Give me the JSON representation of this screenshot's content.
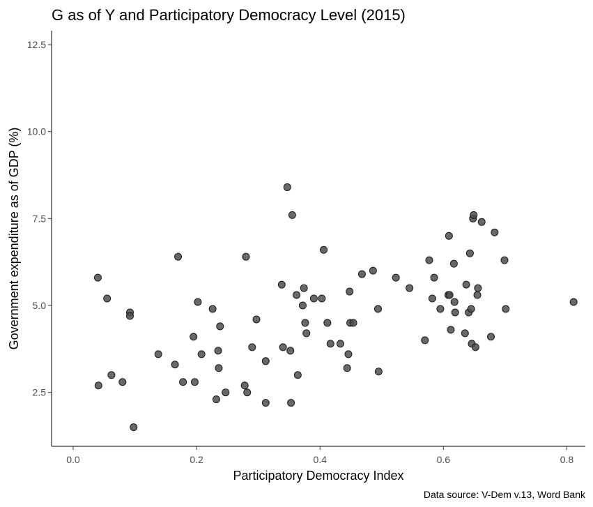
{
  "chart_data": {
    "type": "scatter",
    "title": "G as of Y and Participatory Democracy Level (2015)",
    "xlabel": "Participatory Democracy Index",
    "ylabel": "Government expenditure as of GDP (%)",
    "caption": "Data source: V-Dem v.13, Word Bank",
    "xlim": [
      -0.035,
      0.83
    ],
    "ylim": [
      0.95,
      12.9
    ],
    "x_ticks": [
      0.0,
      0.2,
      0.4,
      0.6,
      0.8
    ],
    "x_tick_labels": [
      "0.0",
      "0.2",
      "0.4",
      "0.6",
      "0.8"
    ],
    "y_ticks": [
      2.5,
      5.0,
      7.5,
      10.0,
      12.5
    ],
    "y_tick_labels": [
      "2.5",
      "5.0",
      "7.5",
      "10.0",
      "12.5"
    ],
    "grid": false,
    "point_color": "#4d4d4d",
    "points": [
      {
        "x": 0.04,
        "y": 5.8
      },
      {
        "x": 0.041,
        "y": 2.7
      },
      {
        "x": 0.055,
        "y": 5.2
      },
      {
        "x": 0.062,
        "y": 3.0
      },
      {
        "x": 0.08,
        "y": 2.8
      },
      {
        "x": 0.092,
        "y": 4.8
      },
      {
        "x": 0.092,
        "y": 4.7
      },
      {
        "x": 0.098,
        "y": 1.5
      },
      {
        "x": 0.138,
        "y": 3.6
      },
      {
        "x": 0.165,
        "y": 3.3
      },
      {
        "x": 0.17,
        "y": 6.4
      },
      {
        "x": 0.178,
        "y": 2.8
      },
      {
        "x": 0.195,
        "y": 4.1
      },
      {
        "x": 0.197,
        "y": 2.8
      },
      {
        "x": 0.202,
        "y": 5.1
      },
      {
        "x": 0.208,
        "y": 3.6
      },
      {
        "x": 0.226,
        "y": 4.9
      },
      {
        "x": 0.232,
        "y": 2.3
      },
      {
        "x": 0.235,
        "y": 3.7
      },
      {
        "x": 0.236,
        "y": 3.2
      },
      {
        "x": 0.238,
        "y": 4.4
      },
      {
        "x": 0.247,
        "y": 2.5
      },
      {
        "x": 0.278,
        "y": 2.7
      },
      {
        "x": 0.28,
        "y": 6.4
      },
      {
        "x": 0.282,
        "y": 2.5
      },
      {
        "x": 0.29,
        "y": 3.8
      },
      {
        "x": 0.297,
        "y": 4.6
      },
      {
        "x": 0.312,
        "y": 3.4
      },
      {
        "x": 0.312,
        "y": 2.2
      },
      {
        "x": 0.338,
        "y": 5.6
      },
      {
        "x": 0.34,
        "y": 3.8
      },
      {
        "x": 0.347,
        "y": 8.4
      },
      {
        "x": 0.352,
        "y": 3.7
      },
      {
        "x": 0.353,
        "y": 2.2
      },
      {
        "x": 0.355,
        "y": 7.6
      },
      {
        "x": 0.362,
        "y": 5.3
      },
      {
        "x": 0.364,
        "y": 3.0
      },
      {
        "x": 0.372,
        "y": 5.0
      },
      {
        "x": 0.374,
        "y": 5.5
      },
      {
        "x": 0.376,
        "y": 4.5
      },
      {
        "x": 0.378,
        "y": 4.2
      },
      {
        "x": 0.39,
        "y": 5.2
      },
      {
        "x": 0.403,
        "y": 5.2
      },
      {
        "x": 0.406,
        "y": 6.6
      },
      {
        "x": 0.412,
        "y": 4.5
      },
      {
        "x": 0.417,
        "y": 3.9
      },
      {
        "x": 0.433,
        "y": 3.9
      },
      {
        "x": 0.444,
        "y": 3.2
      },
      {
        "x": 0.446,
        "y": 3.6
      },
      {
        "x": 0.448,
        "y": 5.4
      },
      {
        "x": 0.449,
        "y": 4.5
      },
      {
        "x": 0.454,
        "y": 4.5
      },
      {
        "x": 0.468,
        "y": 5.9
      },
      {
        "x": 0.486,
        "y": 6.0
      },
      {
        "x": 0.494,
        "y": 4.9
      },
      {
        "x": 0.495,
        "y": 3.1
      },
      {
        "x": 0.523,
        "y": 5.8
      },
      {
        "x": 0.545,
        "y": 5.5
      },
      {
        "x": 0.57,
        "y": 4.0
      },
      {
        "x": 0.577,
        "y": 6.3
      },
      {
        "x": 0.582,
        "y": 5.2
      },
      {
        "x": 0.585,
        "y": 5.8
      },
      {
        "x": 0.595,
        "y": 4.9
      },
      {
        "x": 0.608,
        "y": 5.3
      },
      {
        "x": 0.609,
        "y": 7.0
      },
      {
        "x": 0.61,
        "y": 5.3
      },
      {
        "x": 0.612,
        "y": 4.3
      },
      {
        "x": 0.617,
        "y": 6.2
      },
      {
        "x": 0.618,
        "y": 5.1
      },
      {
        "x": 0.619,
        "y": 4.8
      },
      {
        "x": 0.635,
        "y": 4.2
      },
      {
        "x": 0.637,
        "y": 5.6
      },
      {
        "x": 0.641,
        "y": 4.8
      },
      {
        "x": 0.643,
        "y": 6.5
      },
      {
        "x": 0.645,
        "y": 4.9
      },
      {
        "x": 0.646,
        "y": 3.9
      },
      {
        "x": 0.648,
        "y": 7.5
      },
      {
        "x": 0.649,
        "y": 7.6
      },
      {
        "x": 0.652,
        "y": 3.8
      },
      {
        "x": 0.655,
        "y": 5.3
      },
      {
        "x": 0.656,
        "y": 5.5
      },
      {
        "x": 0.662,
        "y": 7.4
      },
      {
        "x": 0.677,
        "y": 4.1
      },
      {
        "x": 0.683,
        "y": 7.1
      },
      {
        "x": 0.699,
        "y": 6.3
      },
      {
        "x": 0.701,
        "y": 4.9
      },
      {
        "x": 0.811,
        "y": 5.1
      }
    ]
  }
}
